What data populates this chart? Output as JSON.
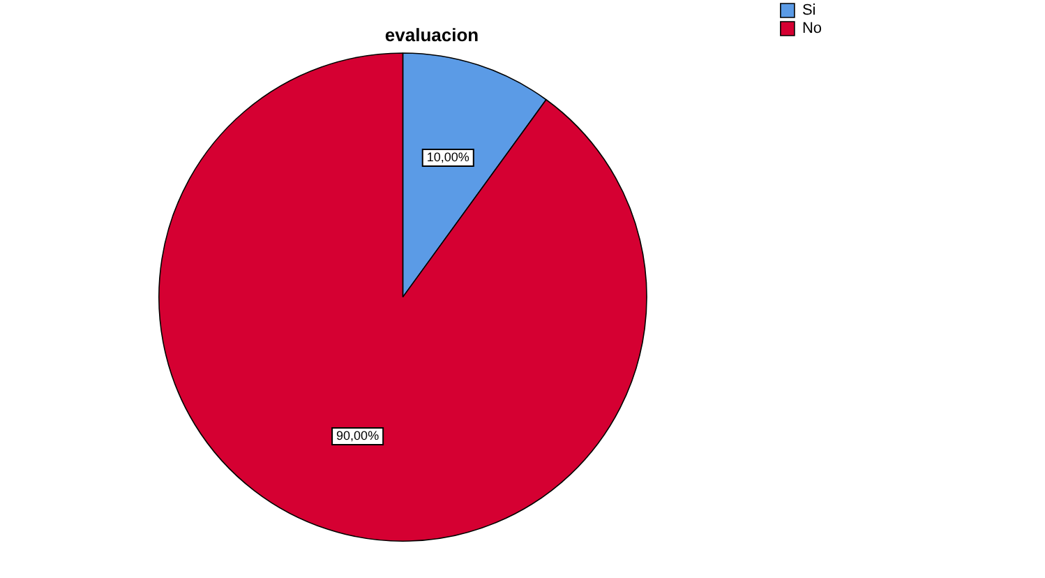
{
  "chart_data": {
    "type": "pie",
    "title": "evaluacion",
    "categories": [
      "Si",
      "No"
    ],
    "values": [
      10,
      90
    ],
    "colors": [
      "#5b9be6",
      "#d50032"
    ],
    "value_labels": [
      "10,00%",
      "90,00%"
    ],
    "legend": "top right"
  }
}
